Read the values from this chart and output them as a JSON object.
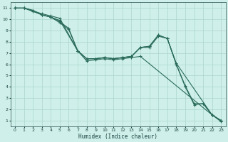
{
  "xlabel": "Humidex (Indice chaleur)",
  "background_color": "#cff0ea",
  "grid_color": "#aad4cc",
  "line_color": "#2a6b5a",
  "xlim": [
    -0.5,
    23.5
  ],
  "ylim": [
    0.5,
    11.5
  ],
  "xticks": [
    0,
    1,
    2,
    3,
    4,
    5,
    6,
    7,
    8,
    9,
    10,
    11,
    12,
    13,
    14,
    15,
    16,
    17,
    18,
    19,
    20,
    21,
    22,
    23
  ],
  "yticks": [
    1,
    2,
    3,
    4,
    5,
    6,
    7,
    8,
    9,
    10,
    11
  ],
  "series": [
    {
      "x": [
        0,
        1,
        3,
        4,
        5,
        7,
        8,
        9,
        10,
        11,
        12,
        13,
        14,
        22,
        23
      ],
      "y": [
        11.0,
        11.0,
        10.5,
        10.3,
        10.1,
        7.2,
        6.3,
        6.4,
        6.5,
        6.4,
        6.5,
        6.6,
        6.7,
        1.5,
        1.0
      ]
    },
    {
      "x": [
        0,
        1,
        2,
        3,
        4,
        5,
        7,
        8,
        9,
        10,
        11,
        12,
        13,
        14,
        15,
        16,
        17,
        18,
        19,
        20,
        21,
        22,
        23
      ],
      "y": [
        11.0,
        11.0,
        10.8,
        10.4,
        10.2,
        9.9,
        7.2,
        6.5,
        6.5,
        6.6,
        6.5,
        6.6,
        6.7,
        7.5,
        7.5,
        8.5,
        8.3,
        6.0,
        4.1,
        2.5,
        2.5,
        1.5,
        1.0
      ]
    },
    {
      "x": [
        0,
        1,
        2,
        3,
        4,
        5,
        6,
        7,
        8,
        9,
        10,
        11,
        12,
        13,
        14,
        15,
        16,
        17,
        18,
        22,
        23
      ],
      "y": [
        11.0,
        11.0,
        10.8,
        10.4,
        10.2,
        9.7,
        9.1,
        7.2,
        6.5,
        6.5,
        6.6,
        6.5,
        6.6,
        6.7,
        7.5,
        7.6,
        8.6,
        8.3,
        6.1,
        1.5,
        1.0
      ]
    },
    {
      "x": [
        0,
        1,
        2,
        3,
        4,
        5,
        6,
        7,
        8,
        9,
        10,
        11,
        12,
        13,
        14,
        15,
        16,
        17,
        18,
        19,
        20,
        21,
        22,
        23
      ],
      "y": [
        11.0,
        11.0,
        10.7,
        10.4,
        10.2,
        9.8,
        9.2,
        7.2,
        6.5,
        6.5,
        6.6,
        6.5,
        6.6,
        6.7,
        7.5,
        7.6,
        8.6,
        8.3,
        6.0,
        4.0,
        2.4,
        2.5,
        1.5,
        0.9
      ]
    }
  ]
}
